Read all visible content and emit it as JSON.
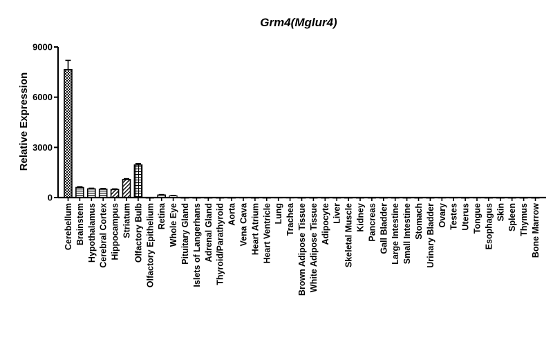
{
  "chart_data": {
    "type": "bar",
    "title": "Grm4(Mglur4)",
    "xlabel": "",
    "ylabel": "Relative Expression",
    "ylim": [
      0,
      9000
    ],
    "yticks": [
      0,
      3000,
      6000,
      9000
    ],
    "grid": false,
    "categories": [
      "Cerebellum",
      "Brainstem",
      "Hypothalamus",
      "Cerebral Cortex",
      "Hippocampus",
      "Striatum",
      "Olfactory Bulb",
      "Olfactory Epithelium",
      "Retina",
      "Whole Eye",
      "Pituitary Gland",
      "Islets of Langerhans",
      "Adrenal Gland",
      "Thyroid/Parathyroid",
      "Aorta",
      "Vena Cava",
      "Heart Atrium",
      "Heart Ventricle",
      "Lung",
      "Trachea",
      "Brown Adipose Tissue",
      "White Adipose Tissue",
      "Adipocyte",
      "Liver",
      "Skeletal Muscle",
      "Kidney",
      "Pancreas",
      "Gall Bladder",
      "Large Intestine",
      "Small Intestine",
      "Stomach",
      "Urinary Bladder",
      "Ovary",
      "Testes",
      "Uterus",
      "Tongue",
      "Esophagus",
      "Skin",
      "Spleen",
      "Thymus",
      "Bone Marrow"
    ],
    "values": [
      7650,
      600,
      520,
      500,
      480,
      1080,
      1950,
      0,
      150,
      110,
      0,
      0,
      0,
      0,
      0,
      8,
      0,
      0,
      10,
      8,
      0,
      0,
      0,
      0,
      0,
      0,
      0,
      0,
      0,
      0,
      0,
      0,
      6,
      8,
      0,
      8,
      0,
      0,
      0,
      0,
      0
    ],
    "errors": [
      550,
      50,
      40,
      40,
      40,
      50,
      80,
      0,
      30,
      20,
      0,
      0,
      0,
      0,
      0,
      0,
      0,
      0,
      0,
      0,
      0,
      0,
      0,
      0,
      0,
      0,
      0,
      0,
      0,
      0,
      0,
      0,
      0,
      0,
      0,
      0,
      0,
      0,
      0,
      0,
      0
    ],
    "patterns": [
      "checker",
      "hstripe",
      "hstripe",
      "hstripe",
      "diag",
      "diag",
      "grid",
      "none",
      "hstripe",
      "hstripe",
      "none",
      "none",
      "none",
      "none",
      "none",
      "none",
      "none",
      "none",
      "none",
      "none",
      "none",
      "none",
      "none",
      "none",
      "none",
      "none",
      "none",
      "none",
      "none",
      "none",
      "none",
      "none",
      "none",
      "none",
      "none",
      "none",
      "none",
      "none",
      "none",
      "none",
      "none"
    ]
  }
}
